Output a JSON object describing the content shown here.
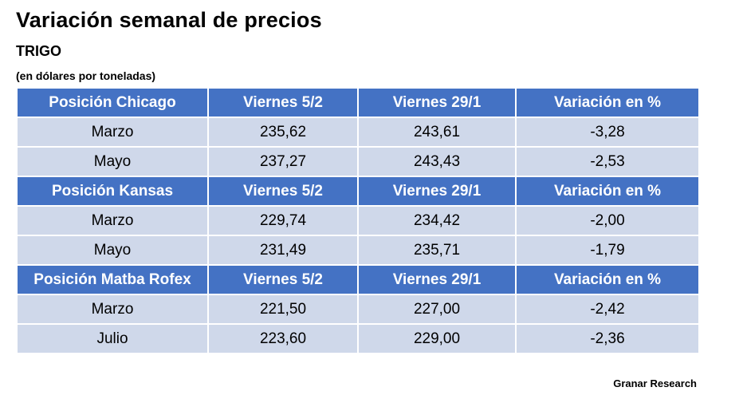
{
  "title": "Variación semanal de precios",
  "subtitle": "TRIGO",
  "unit": "(en dólares por toneladas)",
  "columns": {
    "col2": "Viernes 5/2",
    "col3": "Viernes 29/1",
    "col4": "Variación en %"
  },
  "sections": [
    {
      "header": "Posición Chicago",
      "rows": [
        {
          "label": "Marzo",
          "v1": "235,62",
          "v2": "243,61",
          "var": "-3,28"
        },
        {
          "label": "Mayo",
          "v1": "237,27",
          "v2": "243,43",
          "var": "-2,53"
        }
      ]
    },
    {
      "header": "Posición Kansas",
      "rows": [
        {
          "label": "Marzo",
          "v1": "229,74",
          "v2": "234,42",
          "var": "-2,00"
        },
        {
          "label": "Mayo",
          "v1": "231,49",
          "v2": "235,71",
          "var": "-1,79"
        }
      ]
    },
    {
      "header": "Posición Matba Rofex",
      "rows": [
        {
          "label": "Marzo",
          "v1": "221,50",
          "v2": "227,00",
          "var": "-2,42"
        },
        {
          "label": "Julio",
          "v1": "223,60",
          "v2": "229,00",
          "var": "-2,36"
        }
      ]
    }
  ],
  "source": "Granar Research",
  "colors": {
    "header_bg": "#4472c4",
    "row_bg": "#cfd8ea"
  }
}
